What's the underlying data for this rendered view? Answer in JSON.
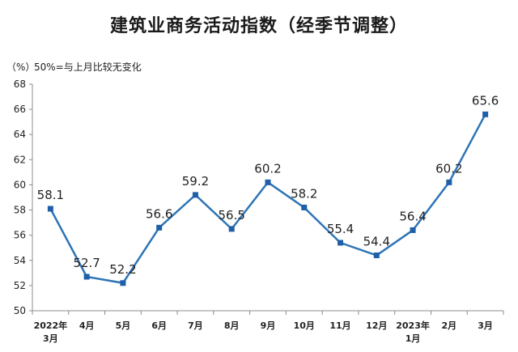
{
  "chart_data": {
    "type": "line",
    "title": "建筑业商务活动指数（经季节调整）",
    "unit": "（%）",
    "note": "50%=与上月比较无变化",
    "categories": [
      {
        "line1": "2022年",
        "line2": "3月"
      },
      {
        "line1": "4月",
        "line2": ""
      },
      {
        "line1": "5月",
        "line2": ""
      },
      {
        "line1": "6月",
        "line2": ""
      },
      {
        "line1": "7月",
        "line2": ""
      },
      {
        "line1": "8月",
        "line2": ""
      },
      {
        "line1": "9月",
        "line2": ""
      },
      {
        "line1": "10月",
        "line2": ""
      },
      {
        "line1": "11月",
        "line2": ""
      },
      {
        "line1": "12月",
        "line2": ""
      },
      {
        "line1": "2023年",
        "line2": "1月"
      },
      {
        "line1": "2月",
        "line2": ""
      },
      {
        "line1": "3月",
        "line2": ""
      }
    ],
    "values": [
      58.1,
      52.7,
      52.2,
      56.6,
      59.2,
      56.5,
      60.2,
      58.2,
      55.4,
      54.4,
      56.4,
      60.2,
      65.6
    ],
    "labels": [
      "58.1",
      "52.7",
      "52.2",
      "56.6",
      "59.2",
      "56.5",
      "60.2",
      "58.2",
      "55.4",
      "54.4",
      "56.4",
      "60.2",
      "65.6"
    ],
    "ylim": [
      50,
      68
    ],
    "yticks": [
      "50",
      "52",
      "54",
      "56",
      "58",
      "60",
      "62",
      "64",
      "66",
      "68"
    ],
    "grid": false,
    "colors": {
      "line": "#2e75b6",
      "marker": "#1f5fa8",
      "axis": "#8c8c8c",
      "text": "#222222"
    }
  }
}
